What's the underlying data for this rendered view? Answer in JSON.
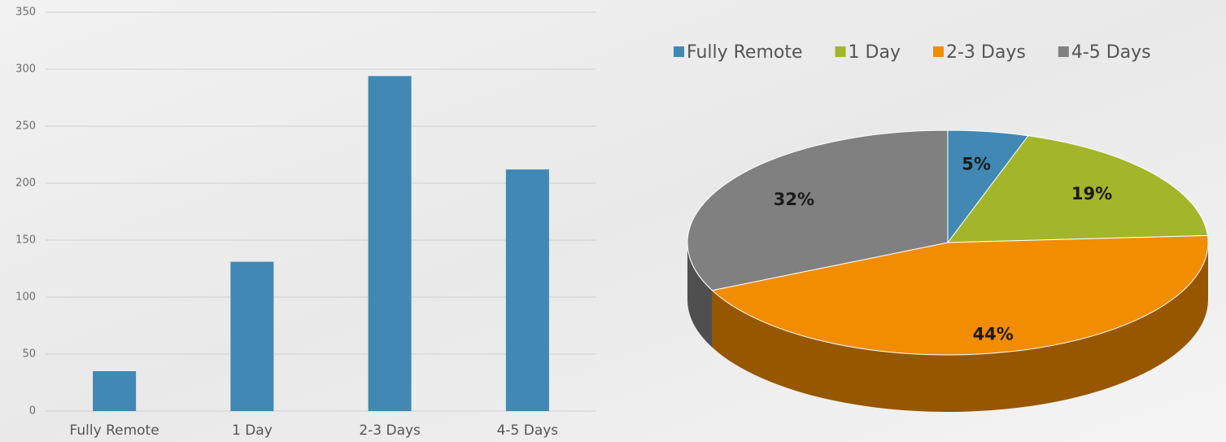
{
  "chart_data": [
    {
      "type": "bar",
      "categories": [
        "Fully Remote",
        "1 Day",
        "2-3 Days",
        "4-5 Days"
      ],
      "values": [
        35,
        131,
        294,
        212
      ],
      "color": "#4188b4",
      "ylim": [
        0,
        350
      ],
      "yticks": [
        0,
        50,
        100,
        150,
        200,
        250,
        300,
        350
      ],
      "grid": true
    },
    {
      "type": "pie",
      "categories": [
        "Fully Remote",
        "1 Day",
        "2-3 Days",
        "4-5 Days"
      ],
      "values": [
        5,
        19,
        44,
        32
      ],
      "value_labels": [
        "5%",
        "19%",
        "44%",
        "32%"
      ],
      "colors": [
        "#4188b4",
        "#a3b52a",
        "#f28c00",
        "#808080"
      ],
      "legend": "top"
    }
  ]
}
